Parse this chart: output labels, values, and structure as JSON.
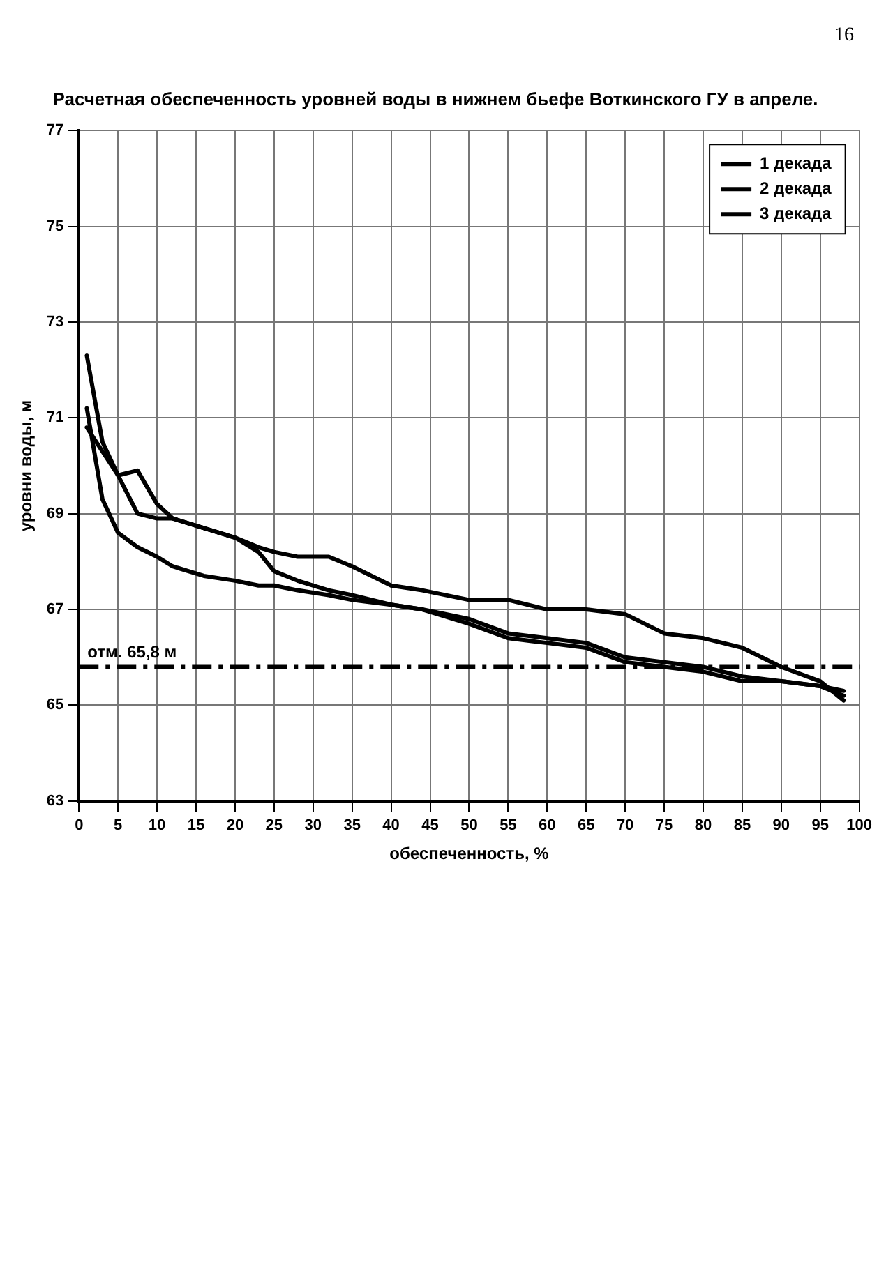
{
  "chart_data": {
    "type": "line",
    "title": "Расчетная обеспеченность уровней воды в нижнем бьефе Воткинского ГУ в апреле.",
    "xlabel": "обеспеченность, %",
    "ylabel": "уровни воды, м",
    "x": [
      1,
      3,
      5,
      7.5,
      10,
      12,
      16,
      20,
      23,
      25,
      28,
      32,
      35,
      40,
      44,
      50,
      55,
      60,
      65,
      70,
      75,
      80,
      85,
      90,
      95,
      98
    ],
    "series": [
      {
        "name": "1 декада",
        "color": "#000000",
        "values": [
          72.3,
          70.5,
          69.8,
          69.9,
          69.2,
          68.9,
          68.7,
          68.5,
          68.2,
          67.8,
          67.6,
          67.4,
          67.3,
          67.1,
          67.0,
          66.8,
          66.5,
          66.4,
          66.3,
          66.0,
          65.9,
          65.8,
          65.6,
          65.5,
          65.4,
          65.2
        ]
      },
      {
        "name": "2 декада",
        "color": "#000000",
        "values": [
          71.2,
          69.3,
          68.6,
          68.3,
          68.1,
          67.9,
          67.7,
          67.6,
          67.5,
          67.5,
          67.4,
          67.3,
          67.2,
          67.1,
          67.0,
          66.7,
          66.4,
          66.3,
          66.2,
          65.9,
          65.8,
          65.7,
          65.5,
          65.5,
          65.4,
          65.3
        ]
      },
      {
        "name": "3 декада",
        "color": "#000000",
        "values": [
          70.8,
          70.3,
          69.8,
          69.0,
          68.9,
          68.9,
          68.7,
          68.5,
          68.3,
          68.2,
          68.1,
          68.1,
          67.9,
          67.5,
          67.4,
          67.2,
          67.2,
          67.0,
          67.0,
          66.9,
          66.5,
          66.4,
          66.2,
          65.8,
          65.5,
          65.1
        ]
      }
    ],
    "xlim": [
      0,
      100
    ],
    "xticks": [
      0,
      5,
      10,
      15,
      20,
      25,
      30,
      35,
      40,
      45,
      50,
      55,
      60,
      65,
      70,
      75,
      80,
      85,
      90,
      95,
      100
    ],
    "ylim": [
      63,
      77
    ],
    "yticks": [
      63,
      65,
      67,
      69,
      71,
      73,
      75,
      77
    ],
    "ref_lines": [
      {
        "axis": "y",
        "value": 65.8,
        "label": "отм. 65,8 м",
        "color": "#000000",
        "line_style": "dashdot"
      }
    ],
    "annotations": [
      "16"
    ],
    "grid": true,
    "legend": "top right",
    "marker": "none",
    "line_style": "solid"
  }
}
